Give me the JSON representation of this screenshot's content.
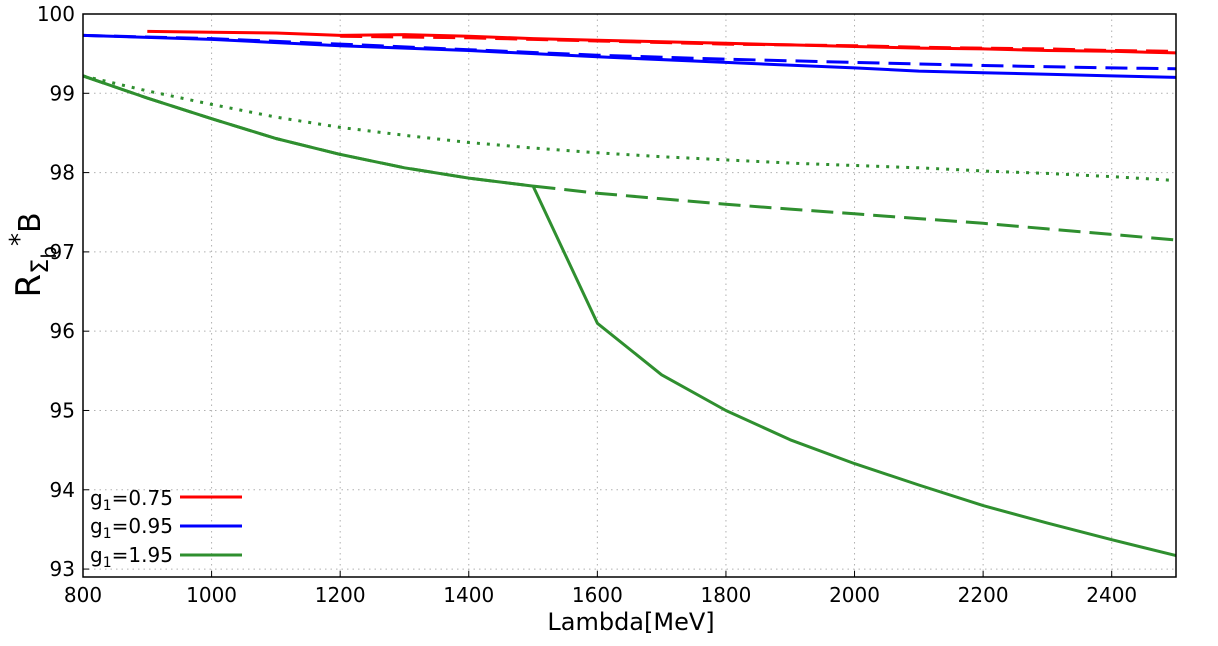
{
  "chart_data": {
    "type": "line",
    "xlabel": "Lambda[MeV]",
    "ylabel": {
      "main": "R",
      "sub1": "Σ",
      "sub2": "b",
      "sup": "*",
      "tail": "B"
    },
    "xlim": [
      800,
      2500
    ],
    "ylim": [
      92.9,
      100
    ],
    "xticks": [
      800,
      1000,
      1200,
      1400,
      1600,
      1800,
      2000,
      2200,
      2400
    ],
    "yticks": [
      93,
      94,
      95,
      96,
      97,
      98,
      99,
      100
    ],
    "grid": true,
    "grid_style": "dotted",
    "legend_position": "bottom-left",
    "legend": [
      {
        "prefix": "g",
        "sub": "1",
        "value": "=0.75",
        "color": "#ff0000"
      },
      {
        "prefix": "g",
        "sub": "1",
        "value": "=0.95",
        "color": "#0000ff"
      },
      {
        "prefix": "g",
        "sub": "1",
        "value": "=1.95",
        "color": "#2f8f2f"
      }
    ],
    "series": [
      {
        "group": "g1=0.75",
        "style": "solid",
        "color": "#ff0000",
        "x": [
          900,
          1000,
          1100,
          1200,
          1300,
          1400,
          1500,
          1600,
          1700,
          1800,
          1900,
          2000,
          2100,
          2200,
          2300,
          2400,
          2500
        ],
        "y": [
          99.78,
          99.77,
          99.76,
          99.73,
          99.74,
          99.72,
          99.69,
          99.67,
          99.65,
          99.63,
          99.61,
          99.59,
          99.57,
          99.56,
          99.54,
          99.53,
          99.51
        ]
      },
      {
        "group": "g1=0.75",
        "style": "dashed",
        "color": "#ff0000",
        "x": [
          1200,
          1300,
          1400,
          1500,
          1600,
          1700,
          1800,
          1900,
          2000,
          2100,
          2200,
          2300,
          2400,
          2500
        ],
        "y": [
          99.72,
          99.71,
          99.7,
          99.68,
          99.66,
          99.64,
          99.62,
          99.61,
          99.6,
          99.58,
          99.57,
          99.56,
          99.54,
          99.53
        ]
      },
      {
        "group": "g1=0.95",
        "style": "solid",
        "color": "#0000ff",
        "x": [
          800,
          1000,
          1200,
          1400,
          1600,
          1800,
          2000,
          2100,
          2200,
          2300,
          2400,
          2500
        ],
        "y": [
          99.73,
          99.68,
          99.6,
          99.54,
          99.46,
          99.39,
          99.32,
          99.28,
          99.26,
          99.24,
          99.22,
          99.2
        ]
      },
      {
        "group": "g1=0.95",
        "style": "dashed",
        "color": "#0000ff",
        "x": [
          800,
          1000,
          1200,
          1400,
          1600,
          1800,
          2000,
          2200,
          2400,
          2500
        ],
        "y": [
          99.73,
          99.69,
          99.62,
          99.55,
          99.48,
          99.43,
          99.39,
          99.35,
          99.32,
          99.31
        ]
      },
      {
        "group": "g1=1.95",
        "style": "dotted",
        "color": "#2f8f2f",
        "x": [
          800,
          900,
          1000,
          1100,
          1200,
          1300,
          1400,
          1500,
          1600,
          1700,
          1800,
          1900,
          2000,
          2100,
          2200,
          2300,
          2400,
          2500
        ],
        "y": [
          99.22,
          99.03,
          98.86,
          98.7,
          98.57,
          98.47,
          98.38,
          98.31,
          98.25,
          98.2,
          98.16,
          98.12,
          98.09,
          98.06,
          98.02,
          97.99,
          97.95,
          97.9
        ]
      },
      {
        "group": "g1=1.95",
        "style": "dashed",
        "color": "#2f8f2f",
        "x": [
          800,
          900,
          1000,
          1100,
          1200,
          1300,
          1400,
          1500,
          1600,
          1700,
          1800,
          1900,
          2000,
          2100,
          2200,
          2300,
          2400,
          2500
        ],
        "y": [
          99.22,
          98.94,
          98.68,
          98.43,
          98.23,
          98.06,
          97.93,
          97.83,
          97.74,
          97.67,
          97.6,
          97.54,
          97.48,
          97.42,
          97.36,
          97.29,
          97.22,
          97.15
        ]
      },
      {
        "group": "g1=1.95",
        "style": "solid",
        "color": "#2f8f2f",
        "x": [
          800,
          900,
          1000,
          1100,
          1200,
          1300,
          1400,
          1500,
          1600,
          1700,
          1800,
          1900,
          2000,
          2100,
          2200,
          2300,
          2400,
          2500
        ],
        "y": [
          99.22,
          98.94,
          98.68,
          98.43,
          98.23,
          98.06,
          97.93,
          97.83,
          96.1,
          95.45,
          95.0,
          94.63,
          94.33,
          94.06,
          93.8,
          93.58,
          93.37,
          93.17
        ]
      }
    ]
  }
}
